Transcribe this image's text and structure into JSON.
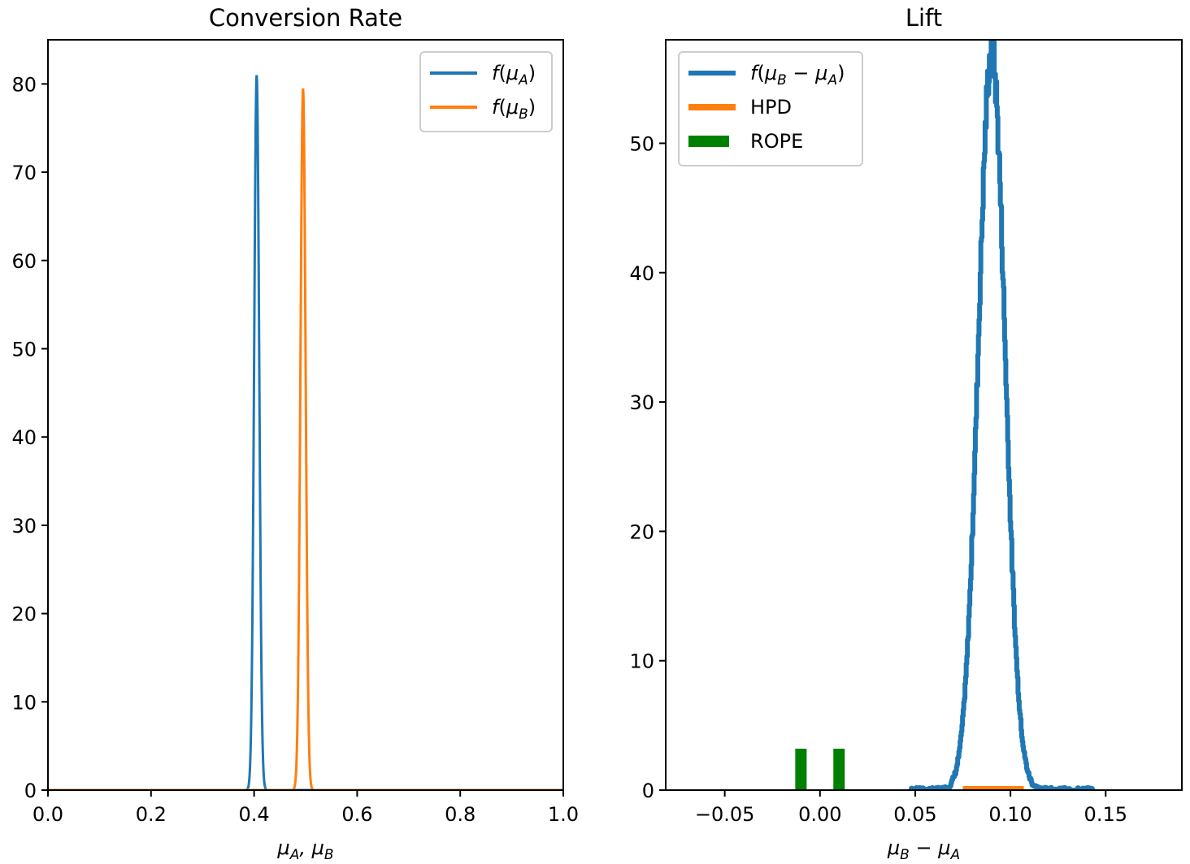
{
  "chart_data": [
    {
      "type": "line",
      "title": "Conversion Rate",
      "xlabel": "μA, μB",
      "ylabel": "",
      "xlim": [
        0.0,
        1.0
      ],
      "ylim": [
        0,
        85
      ],
      "xticks": [
        0.0,
        0.2,
        0.4,
        0.6,
        0.8,
        1.0
      ],
      "xtick_labels": [
        "0.0",
        "0.2",
        "0.4",
        "0.6",
        "0.8",
        "1.0"
      ],
      "yticks": [
        0,
        10,
        20,
        30,
        40,
        50,
        60,
        70,
        80
      ],
      "ytick_labels": [
        "0",
        "10",
        "20",
        "30",
        "40",
        "50",
        "60",
        "70",
        "80"
      ],
      "legend_position": "top-right",
      "series": [
        {
          "name": "f(μA)",
          "distribution": "normal",
          "mean": 0.405,
          "peak": 81,
          "color": "#1f77b4"
        },
        {
          "name": "f(μB)",
          "distribution": "normal",
          "mean": 0.495,
          "peak": 79.5,
          "color": "#ff7f0e"
        }
      ]
    },
    {
      "type": "line",
      "title": "Lift",
      "xlabel": "μB − μA",
      "ylabel": "",
      "xlim": [
        -0.081,
        0.19
      ],
      "ylim": [
        0,
        58
      ],
      "xticks": [
        -0.05,
        0.0,
        0.05,
        0.1,
        0.15
      ],
      "xtick_labels": [
        "−0.05",
        "0.00",
        "0.05",
        "0.10",
        "0.15"
      ],
      "yticks": [
        0,
        10,
        20,
        30,
        40,
        50
      ],
      "ytick_labels": [
        "0",
        "10",
        "20",
        "30",
        "40",
        "50"
      ],
      "legend_position": "top-left",
      "series": [
        {
          "name": "f(μB − μA)",
          "distribution": "normal-histogram",
          "mean": 0.09,
          "peak": 57,
          "range": [
            0.047,
            0.143
          ],
          "color": "#1f77b4"
        },
        {
          "name": "HPD",
          "kind": "interval",
          "range": [
            0.075,
            0.107
          ],
          "color": "#ff7f0e"
        },
        {
          "name": "ROPE",
          "kind": "bars",
          "positions": [
            -0.01,
            0.01
          ],
          "height": 3.2,
          "color": "#008000"
        }
      ]
    }
  ]
}
